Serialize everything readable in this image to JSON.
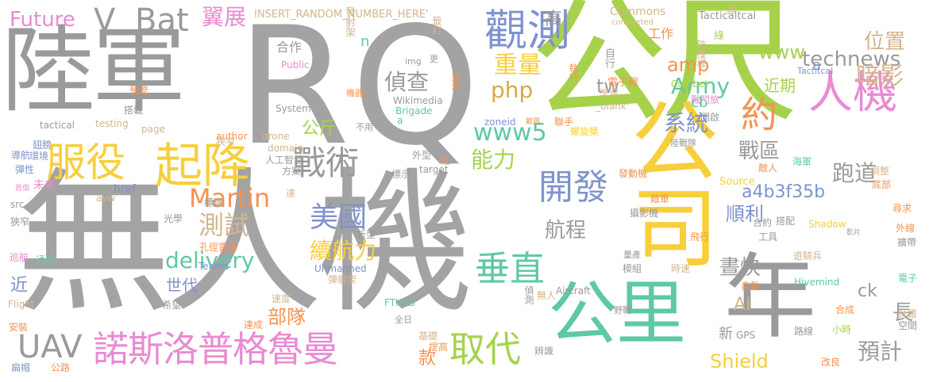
{
  "words": [
    "陸軍",
    "RQ",
    "公尺",
    "無人機",
    "公司",
    "公里",
    "年",
    "諾斯洛普格魯曼",
    "起降",
    "觀測",
    "服役",
    "開發",
    "取代",
    "垂直",
    "人機",
    "戰術",
    "Martin",
    "美國",
    "約",
    "UAV",
    "delivery",
    "續航力",
    "測試",
    "www5",
    "Bat",
    "V",
    "Future",
    "翼展",
    "technews",
    "amp",
    "Army",
    "重量",
    "偵查",
    "php",
    "公斤",
    "系統",
    "暗影",
    "位置",
    "www",
    "能力",
    "跑道",
    "戰區",
    "a4b3f35b",
    "航程",
    "順利",
    "晝快",
    "AI",
    "Shield",
    "預計",
    "長",
    "部隊",
    "款",
    "ck",
    "世代",
    "近",
    "tw",
    "cb",
    "高",
    "近期",
    "a",
    "n",
    "合作",
    "工作",
    "新",
    "INSERT_RANDOM_NUMBER_HERE'",
    "Commons",
    "Tacticaltcal",
    "completed",
    "發射架",
    "籤訂",
    "執行",
    "自行",
    "綠",
    "防撞桿",
    "電子戰",
    "學習",
    "_blank'",
    "Combet",
    "戰鬥旅",
    "開啟",
    "zoneid",
    "聯手",
    "螺旋槳",
    "陸戰隊",
    "截圖",
    "Source",
    "海軍",
    "敵人",
    "調整",
    "底部",
    "尋求",
    "外線",
    "擴帶",
    "電子",
    "Hivemind",
    "Shadow",
    "影片",
    "計畫",
    "空間",
    "小時",
    "合成",
    "路線",
    "改良",
    "GPS",
    "img",
    "更",
    "來源",
    "Public",
    "System",
    "Wikimedia",
    "Brigade",
    "機器",
    "不用",
    "author",
    "drone",
    "domain",
    "人工智慧",
    "外型",
    "紅",
    "方案",
    "標示",
    "target",
    "發動機",
    "敵軍",
    "攝影機",
    "合約",
    "搭配",
    "工具",
    "飛行",
    "遊騎兵",
    "量產",
    "模組",
    "時速",
    "自動",
    "野戰",
    "Aircraft",
    "無人",
    "偵測",
    "全日",
    "基礎",
    "提高",
    "辨識",
    "達成",
    "速度",
    "FTUAS",
    "彈射架",
    "Unmanned",
    "孔徑雷達",
    "Teams",
    "標識",
    "新型",
    "光學",
    "希望",
    "安裝",
    "Flight",
    "扁帽",
    "公路",
    "通過",
    "巡航",
    "狹窄",
    "src",
    "avw",
    "href",
    "首個",
    "未來",
    "彈性",
    "環境",
    "導航",
    "翅膀",
    "tactical",
    "testing",
    "page",
    "搭載",
    "預警",
    "狹窄",
    "達",
    "標",
    "Tactitcal",
    "a",
    "Brigade"
  ]
}
